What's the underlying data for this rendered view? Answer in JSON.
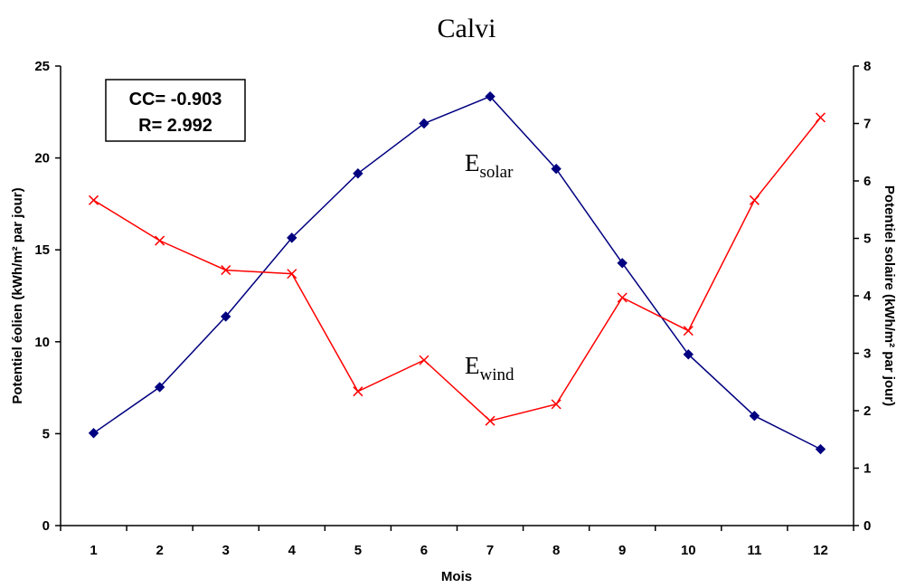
{
  "chart_data": {
    "type": "line",
    "title": "Calvi",
    "xlabel": "Mois",
    "ylabel_left": "Potentiel éolien (kWh/m² par jour)",
    "ylabel_right": "Potentiel solaire (kWh/m² par jour)",
    "categories": [
      "1",
      "2",
      "3",
      "4",
      "5",
      "6",
      "7",
      "8",
      "9",
      "10",
      "11",
      "12"
    ],
    "ylim_left": [
      0,
      25
    ],
    "yticks_left": [
      0,
      5,
      10,
      15,
      20,
      25
    ],
    "ylim_right": [
      0,
      8
    ],
    "yticks_right": [
      0,
      1,
      2,
      3,
      4,
      5,
      6,
      7,
      8
    ],
    "grid": false,
    "series": [
      {
        "label_main": "E",
        "label_sub": "solar",
        "axis": "right",
        "color": "#000080",
        "marker": "diamond",
        "values": [
          1.61,
          2.41,
          3.64,
          5.01,
          6.13,
          7.0,
          7.47,
          6.21,
          4.57,
          2.98,
          1.91,
          1.33
        ]
      },
      {
        "label_main": "E",
        "label_sub": "wind",
        "axis": "left",
        "color": "#ff0000",
        "marker": "x",
        "values": [
          17.7,
          15.5,
          13.9,
          13.7,
          7.3,
          9.0,
          5.7,
          6.6,
          12.4,
          10.6,
          17.7,
          22.2
        ]
      }
    ],
    "annotation_box": {
      "line1": "CC= -0.903",
      "line2": "R= 2.992"
    }
  }
}
